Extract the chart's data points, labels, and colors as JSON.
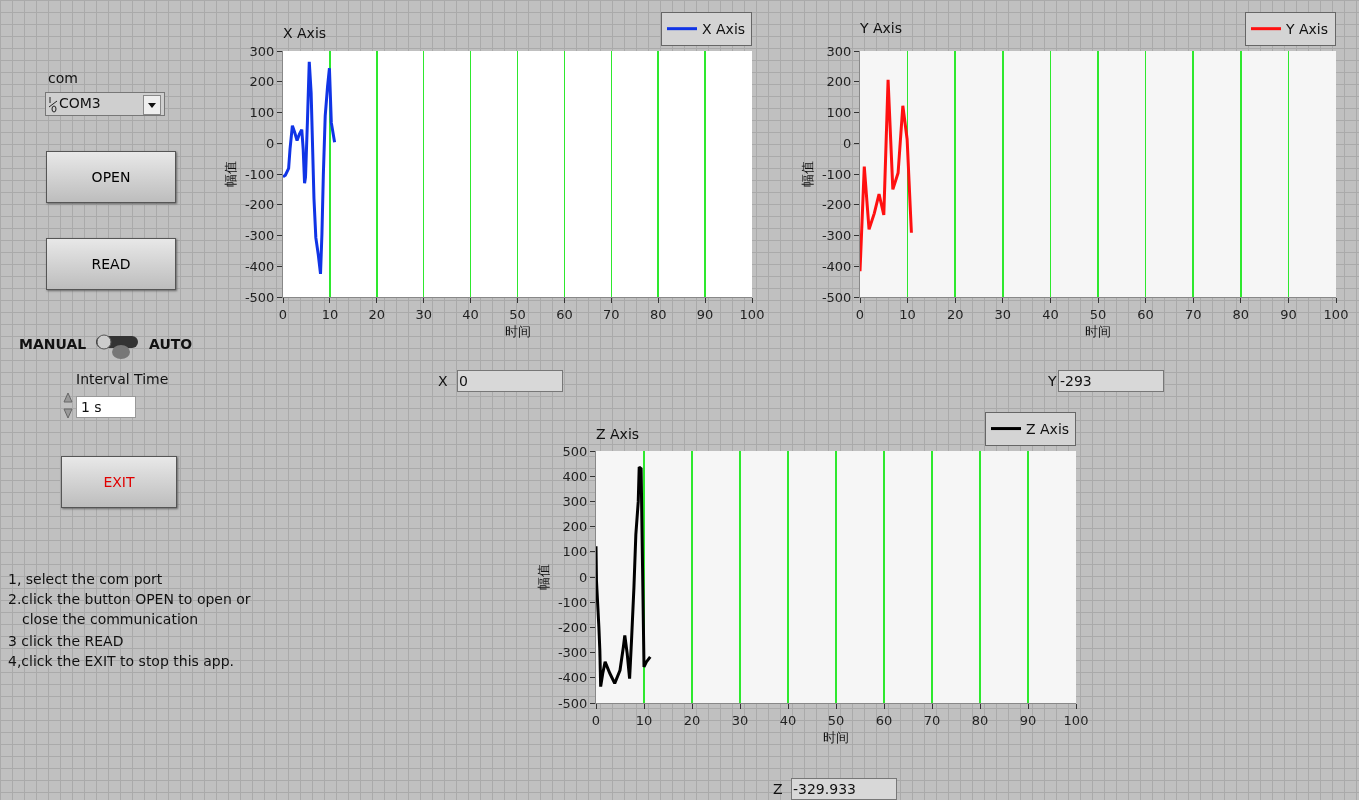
{
  "chart_data": [
    {
      "type": "line",
      "title": "X Axis",
      "xlabel": "时间",
      "ylabel": "幅值",
      "legend": "top right",
      "grid": "x",
      "xlim": [
        0,
        100
      ],
      "xticks": [
        0,
        10,
        20,
        30,
        40,
        50,
        60,
        70,
        80,
        90,
        100
      ],
      "ylim": [
        -500,
        300
      ],
      "yticks": [
        -500,
        -400,
        -300,
        -200,
        -100,
        0,
        100,
        200,
        300
      ],
      "annotations": [
        "X",
        "0"
      ],
      "series": [
        {
          "name": "X Axis",
          "color": "#1034e6",
          "x": [
            0,
            0.5,
            1.2,
            1.5,
            2,
            2.5,
            3,
            3.5,
            4,
            4.3,
            4.6,
            4.8,
            5.2,
            5.6,
            6,
            6.6,
            7,
            7.5,
            8,
            8.3,
            8.6,
            9,
            9.5,
            9.9,
            10.3,
            11
          ],
          "values": [
            -109,
            -104,
            -82,
            -18,
            57,
            35,
            9,
            30,
            44,
            -18,
            -130,
            -110,
            67,
            265,
            164,
            -179,
            -307,
            -360,
            -425,
            -295,
            -104,
            89,
            185,
            244,
            67,
            3
          ]
        }
      ]
    },
    {
      "type": "line",
      "title": "Y Axis",
      "xlabel": "时间",
      "ylabel": "幅值",
      "legend": "top right",
      "grid": "x",
      "xlim": [
        0,
        100
      ],
      "xticks": [
        0,
        10,
        20,
        30,
        40,
        50,
        60,
        70,
        80,
        90,
        100
      ],
      "ylim": [
        -500,
        300
      ],
      "yticks": [
        -500,
        -400,
        -300,
        -200,
        -100,
        0,
        100,
        200,
        300
      ],
      "annotations": [
        "Y",
        "-293"
      ],
      "series": [
        {
          "name": "Y Axis",
          "color": "#ff1010",
          "x": [
            0,
            0.9,
            1.9,
            3,
            4,
            5,
            5.9,
            6.9,
            8,
            9,
            9.9,
            10.8
          ],
          "values": [
            -416,
            -76,
            -280,
            -228,
            -165,
            -233,
            206,
            -150,
            -97,
            122,
            13,
            -291
          ]
        }
      ]
    },
    {
      "type": "line",
      "title": "Z Axis",
      "xlabel": "时间",
      "ylabel": "幅值",
      "legend": "top right",
      "grid": "x",
      "xlim": [
        0,
        100
      ],
      "xticks": [
        0,
        10,
        20,
        30,
        40,
        50,
        60,
        70,
        80,
        90,
        100
      ],
      "ylim": [
        -500,
        500
      ],
      "yticks": [
        -500,
        -400,
        -300,
        -200,
        -100,
        0,
        100,
        200,
        300,
        400,
        500
      ],
      "annotations": [
        "Z",
        "-329.933"
      ],
      "series": [
        {
          "name": "Z Axis",
          "color": "#000000",
          "x": [
            0,
            0.1,
            0.6,
            0.8,
            0.97,
            1.4,
            1.9,
            2.9,
            3.9,
            5,
            5.7,
            6,
            6.5,
            7,
            7.4,
            7.9,
            8.3,
            8.8,
            9,
            9.4,
            9.7,
            10,
            10.5,
            11.3
          ],
          "values": [
            122,
            -16,
            -199,
            -291,
            -435,
            -383,
            -337,
            -383,
            -422,
            -370,
            -278,
            -232,
            -304,
            -403,
            -252,
            -42,
            168,
            299,
            436,
            430,
            37,
            -357,
            -337,
            -317
          ]
        }
      ]
    },
    {
      "type": "other",
      "annotations": [
        "com",
        "COM3",
        "OPEN",
        "READ",
        "MANUAL",
        "AUTO",
        "Interval Time",
        "1 s",
        "EXIT",
        "1, select the com port",
        "2.click the button OPEN to open or close the communication",
        "3 click the READ",
        "4,click the EXIT to stop this app."
      ]
    }
  ]
}
